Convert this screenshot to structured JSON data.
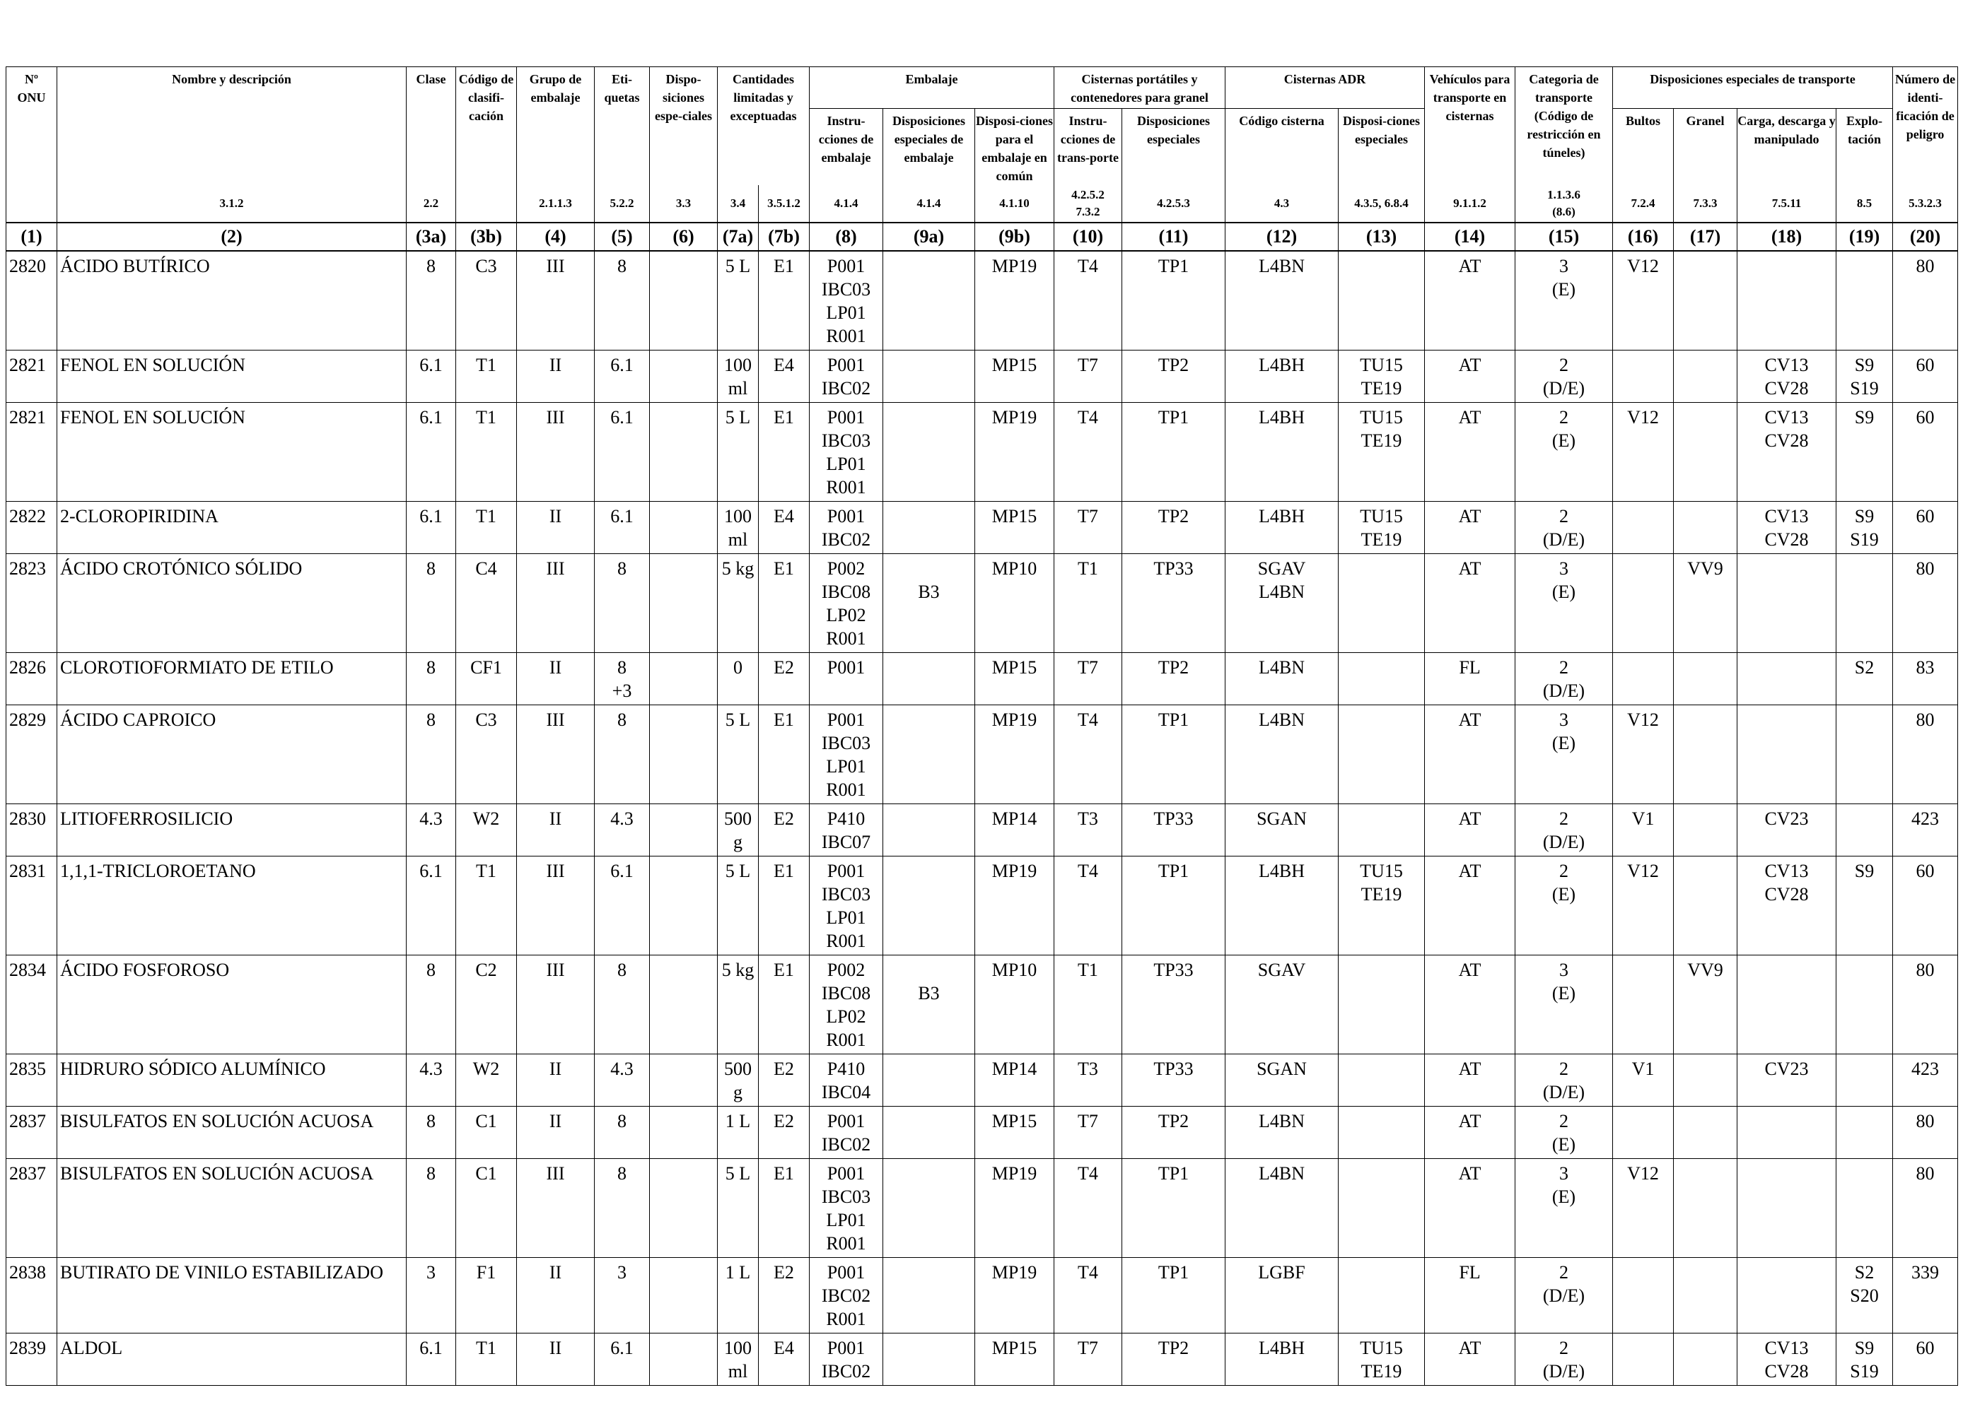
{
  "headers": {
    "un": "Nº\nONU",
    "name": "Nombre y descripción",
    "class": "Clase",
    "code": "Código de clasifi-cación",
    "pg": "Grupo de embalaje",
    "labels": "Eti-quetas",
    "sp": "Dispo-siciones espe-ciales",
    "lq": "Cantidades limitadas y exceptuadas",
    "packing": "Embalaje",
    "pack_instr": "Instru-cciones de embalaje",
    "pack_sp": "Disposiciones especiales de embalaje",
    "mixed": "Disposi-ciones para el embalaje en común",
    "portable": "Cisternas portátiles y contenedores para granel",
    "port_instr": "Instru-cciones de trans-porte",
    "port_sp": "Disposiciones especiales",
    "adr": "Cisternas ADR",
    "tank_code": "Código cisterna",
    "tank_sp": "Disposi-ciones especiales",
    "vehicle": "Vehículos para transporte en cisternas",
    "category": "Categoria de transporte (Código de restricción en túneles)",
    "special": "Disposiciones especiales de transporte",
    "packages": "Bultos",
    "bulk": "Granel",
    "loading": "Carga, descarga y manipulado",
    "operation": "Explo-tación",
    "hin": "Número de identi-ficación de peligro"
  },
  "refs": [
    "",
    "3.1.2",
    "2.2",
    "",
    "2.1.1.3",
    "5.2.2",
    "3.3",
    "3.4",
    "3.5.1.2",
    "4.1.4",
    "4.1.4",
    "4.1.10",
    "4.2.5.2\n7.3.2",
    "4.2.5.3",
    "4.3",
    "4.3.5, 6.8.4",
    "9.1.1.2",
    "1.1.3.6\n(8.6)",
    "7.2.4",
    "7.3.3",
    "7.5.11",
    "8.5",
    "5.3.2.3"
  ],
  "colnums": [
    "(1)",
    "(2)",
    "(3a)",
    "(3b)",
    "(4)",
    "(5)",
    "(6)",
    "(7a)",
    "(7b)",
    "(8)",
    "(9a)",
    "(9b)",
    "(10)",
    "(11)",
    "(12)",
    "(13)",
    "(14)",
    "(15)",
    "(16)",
    "(17)",
    "(18)",
    "(19)",
    "(20)"
  ],
  "rows": [
    [
      "2820",
      "ÁCIDO BUTÍRICO",
      "8",
      "C3",
      "III",
      "8",
      "",
      "5 L",
      "E1",
      "P001\nIBC03\nLP01\nR001",
      "",
      "MP19",
      "T4",
      "TP1",
      "L4BN",
      "",
      "AT",
      "3\n(E)",
      "V12",
      "",
      "",
      "",
      "80"
    ],
    [
      "2821",
      "FENOL EN SOLUCIÓN",
      "6.1",
      "T1",
      "II",
      "6.1",
      "",
      "100\nml",
      "E4",
      "P001\nIBC02",
      "",
      "MP15",
      "T7",
      "TP2",
      "L4BH",
      "TU15\nTE19",
      "AT",
      "2\n(D/E)",
      "",
      "",
      "CV13\nCV28",
      "S9\nS19",
      "60"
    ],
    [
      "2821",
      "FENOL EN SOLUCIÓN",
      "6.1",
      "T1",
      "III",
      "6.1",
      "",
      "5 L",
      "E1",
      "P001\nIBC03\nLP01\nR001",
      "",
      "MP19",
      "T4",
      "TP1",
      "L4BH",
      "TU15\nTE19",
      "AT",
      "2\n(E)",
      "V12",
      "",
      "CV13\nCV28",
      "S9",
      "60"
    ],
    [
      "2822",
      "2-CLOROPIRIDINA",
      "6.1",
      "T1",
      "II",
      "6.1",
      "",
      "100\nml",
      "E4",
      "P001\nIBC02",
      "",
      "MP15",
      "T7",
      "TP2",
      "L4BH",
      "TU15\nTE19",
      "AT",
      "2\n(D/E)",
      "",
      "",
      "CV13\nCV28",
      "S9\nS19",
      "60"
    ],
    [
      "2823",
      "ÁCIDO CROTÓNICO SÓLIDO",
      "8",
      "C4",
      "III",
      "8",
      "",
      "5 kg",
      "E1",
      "P002\nIBC08\nLP02\nR001",
      "\nB3",
      "MP10",
      "T1",
      "TP33",
      "SGAV\nL4BN",
      "",
      "AT",
      "3\n(E)",
      "",
      "VV9",
      "",
      "",
      "80"
    ],
    [
      "2826",
      "CLOROTIOFORMIATO DE ETILO",
      "8",
      "CF1",
      "II",
      "8\n+3",
      "",
      "0",
      "E2",
      "P001",
      "",
      "MP15",
      "T7",
      "TP2",
      "L4BN",
      "",
      "FL",
      "2\n(D/E)",
      "",
      "",
      "",
      "S2",
      "83"
    ],
    [
      "2829",
      "ÁCIDO CAPROICO",
      "8",
      "C3",
      "III",
      "8",
      "",
      "5 L",
      "E1",
      "P001\nIBC03\nLP01\nR001",
      "",
      "MP19",
      "T4",
      "TP1",
      "L4BN",
      "",
      "AT",
      "3\n(E)",
      "V12",
      "",
      "",
      "",
      "80"
    ],
    [
      "2830",
      "LITIOFERROSILICIO",
      "4.3",
      "W2",
      "II",
      "4.3",
      "",
      "500\ng",
      "E2",
      "P410\nIBC07",
      "",
      "MP14",
      "T3",
      "TP33",
      "SGAN",
      "",
      "AT",
      "2\n(D/E)",
      "V1",
      "",
      "CV23",
      "",
      "423"
    ],
    [
      "2831",
      "1,1,1-TRICLOROETANO",
      "6.1",
      "T1",
      "III",
      "6.1",
      "",
      "5 L",
      "E1",
      "P001\nIBC03\nLP01\nR001",
      "",
      "MP19",
      "T4",
      "TP1",
      "L4BH",
      "TU15\nTE19",
      "AT",
      "2\n(E)",
      "V12",
      "",
      "CV13\nCV28",
      "S9",
      "60"
    ],
    [
      "2834",
      "ÁCIDO FOSFOROSO",
      "8",
      "C2",
      "III",
      "8",
      "",
      "5 kg",
      "E1",
      "P002\nIBC08\nLP02\nR001",
      "\nB3",
      "MP10",
      "T1",
      "TP33",
      "SGAV",
      "",
      "AT",
      "3\n(E)",
      "",
      "VV9",
      "",
      "",
      "80"
    ],
    [
      "2835",
      "HIDRURO SÓDICO ALUMÍNICO",
      "4.3",
      "W2",
      "II",
      "4.3",
      "",
      "500\ng",
      "E2",
      "P410\nIBC04",
      "",
      "MP14",
      "T3",
      "TP33",
      "SGAN",
      "",
      "AT",
      "2\n(D/E)",
      "V1",
      "",
      "CV23",
      "",
      "423"
    ],
    [
      "2837",
      "BISULFATOS EN SOLUCIÓN ACUOSA",
      "8",
      "C1",
      "II",
      "8",
      "",
      "1 L",
      "E2",
      "P001\nIBC02",
      "",
      "MP15",
      "T7",
      "TP2",
      "L4BN",
      "",
      "AT",
      "2\n(E)",
      "",
      "",
      "",
      "",
      "80"
    ],
    [
      "2837",
      "BISULFATOS EN SOLUCIÓN ACUOSA",
      "8",
      "C1",
      "III",
      "8",
      "",
      "5 L",
      "E1",
      "P001\nIBC03\nLP01\nR001",
      "",
      "MP19",
      "T4",
      "TP1",
      "L4BN",
      "",
      "AT",
      "3\n(E)",
      "V12",
      "",
      "",
      "",
      "80"
    ],
    [
      "2838",
      "BUTIRATO DE VINILO ESTABILIZADO",
      "3",
      "F1",
      "II",
      "3",
      "",
      "1 L",
      "E2",
      "P001\nIBC02\nR001",
      "",
      "MP19",
      "T4",
      "TP1",
      "LGBF",
      "",
      "FL",
      "2\n(D/E)",
      "",
      "",
      "",
      "S2\nS20",
      "339"
    ],
    [
      "2839",
      "ALDOL",
      "6.1",
      "T1",
      "II",
      "6.1",
      "",
      "100\nml",
      "E4",
      "P001\nIBC02",
      "",
      "MP15",
      "T7",
      "TP2",
      "L4BH",
      "TU15\nTE19",
      "AT",
      "2\n(D/E)",
      "",
      "",
      "CV13\nCV28",
      "S9\nS19",
      "60"
    ]
  ]
}
